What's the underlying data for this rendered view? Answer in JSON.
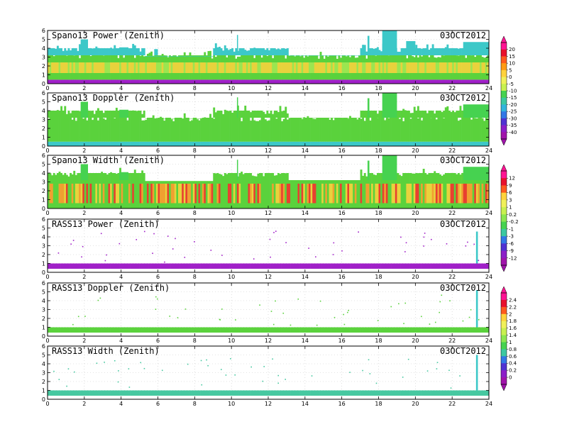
{
  "chart_data": [
    {
      "type": "heatmap",
      "title": "Spano13 Power (Zenith)",
      "date": "03OCT2012",
      "x_ticks": [
        0,
        2,
        4,
        6,
        8,
        10,
        12,
        14,
        16,
        18,
        20,
        22,
        24
      ],
      "y_ticks": [
        0,
        1,
        2,
        3,
        4,
        5,
        6
      ],
      "xlim": [
        0,
        24
      ],
      "ylim": [
        0,
        6
      ],
      "colorbar_group": 0,
      "layers": [
        {
          "from": 0.0,
          "to": 0.45,
          "level": "purple"
        },
        {
          "from": 0.45,
          "to": 1.2,
          "level": "green"
        },
        {
          "from": 1.2,
          "to": 2.4,
          "level": "yellow"
        },
        {
          "from": 2.4,
          "to": 3.2,
          "level": "green"
        },
        {
          "from": 3.2,
          "to": 4.0,
          "level": "cyan"
        }
      ],
      "plumes": [
        {
          "x": [
            1.8,
            2.2
          ],
          "top": 5.0
        },
        {
          "x": [
            3.9,
            4.4
          ],
          "top": 4.1
        },
        {
          "x": [
            5.8,
            6.0
          ],
          "top": 3.9
        },
        {
          "x": [
            9.2,
            9.3
          ],
          "top": 4.1
        },
        {
          "x": [
            10.3,
            10.35
          ],
          "top": 5.5
        },
        {
          "x": [
            17.4,
            17.5
          ],
          "top": 5.4
        },
        {
          "x": [
            18.2,
            19.0
          ],
          "top": 6.0
        },
        {
          "x": [
            19.5,
            20.0
          ],
          "top": 4.8
        },
        {
          "x": [
            22.6,
            24.0
          ],
          "top": 4.7
        }
      ]
    },
    {
      "type": "heatmap",
      "title": "Spano13 Doppler (Zenith)",
      "date": "03OCT2012",
      "x_ticks": [
        0,
        2,
        4,
        6,
        8,
        10,
        12,
        14,
        16,
        18,
        20,
        22,
        24
      ],
      "y_ticks": [
        0,
        1,
        2,
        3,
        4,
        5,
        6
      ],
      "xlim": [
        0,
        24
      ],
      "ylim": [
        0,
        6
      ],
      "colorbar_group": 0,
      "layers": [
        {
          "from": 0.0,
          "to": 0.5,
          "level": "cyan"
        },
        {
          "from": 0.5,
          "to": 3.2,
          "level": "green"
        },
        {
          "from": 3.2,
          "to": 4.0,
          "level": "green"
        }
      ],
      "plumes": [
        {
          "x": [
            1.8,
            2.2
          ],
          "top": 5.0
        },
        {
          "x": [
            3.9,
            4.4
          ],
          "top": 4.1
        },
        {
          "x": [
            10.3,
            10.35
          ],
          "top": 5.5
        },
        {
          "x": [
            17.4,
            17.5
          ],
          "top": 5.4
        },
        {
          "x": [
            18.2,
            19.0
          ],
          "top": 6.0
        },
        {
          "x": [
            22.6,
            24.0
          ],
          "top": 4.7
        }
      ]
    },
    {
      "type": "heatmap",
      "title": "Spano13 Width (Zenith)",
      "date": "03OCT2012",
      "x_ticks": [
        0,
        2,
        4,
        6,
        8,
        10,
        12,
        14,
        16,
        18,
        20,
        22,
        24
      ],
      "y_ticks": [
        0,
        1,
        2,
        3,
        4,
        5,
        6
      ],
      "xlim": [
        0,
        24
      ],
      "ylim": [
        0,
        6
      ],
      "colorbar_group": 1,
      "layers": [
        {
          "from": 0.0,
          "to": 0.6,
          "level": "green"
        },
        {
          "from": 0.6,
          "to": 2.8,
          "level": "mixed-red"
        },
        {
          "from": 2.8,
          "to": 4.0,
          "level": "green"
        }
      ],
      "plumes": [
        {
          "x": [
            1.8,
            2.2
          ],
          "top": 5.0
        },
        {
          "x": [
            3.9,
            4.4
          ],
          "top": 4.1
        },
        {
          "x": [
            10.3,
            10.35
          ],
          "top": 5.5
        },
        {
          "x": [
            17.4,
            17.5
          ],
          "top": 5.4
        },
        {
          "x": [
            18.2,
            19.0
          ],
          "top": 6.0
        },
        {
          "x": [
            22.6,
            24.0
          ],
          "top": 4.7
        }
      ]
    },
    {
      "type": "heatmap",
      "title": "RASS13 Power (Zenith)",
      "date": "03OCT2012",
      "x_ticks": [
        0,
        2,
        4,
        6,
        8,
        10,
        12,
        14,
        16,
        18,
        20,
        22,
        24
      ],
      "y_ticks": [
        0,
        1,
        2,
        3,
        4,
        5,
        6
      ],
      "xlim": [
        0,
        24
      ],
      "ylim": [
        0,
        6
      ],
      "colorbar_group": 1,
      "layers": [
        {
          "from": 0.4,
          "to": 1.0,
          "level": "purple"
        }
      ],
      "plumes": [
        {
          "x": [
            23.3,
            23.4
          ],
          "top": 4.6
        }
      ]
    },
    {
      "type": "heatmap",
      "title": "RASS13 Doppler (Zenith)",
      "date": "03OCT2012",
      "x_ticks": [
        0,
        2,
        4,
        6,
        8,
        10,
        12,
        14,
        16,
        18,
        20,
        22,
        24
      ],
      "y_ticks": [
        0,
        1,
        2,
        3,
        4,
        5,
        6
      ],
      "xlim": [
        0,
        24
      ],
      "ylim": [
        0,
        6
      ],
      "colorbar_group": 2,
      "layers": [
        {
          "from": 0.4,
          "to": 1.0,
          "level": "green"
        }
      ],
      "plumes": [
        {
          "x": [
            23.3,
            23.4
          ],
          "top": 5.2
        }
      ]
    },
    {
      "type": "heatmap",
      "title": "RASS13 Width (Zenith)",
      "date": "03OCT2012",
      "x_ticks": [
        0,
        2,
        4,
        6,
        8,
        10,
        12,
        14,
        16,
        18,
        20,
        22,
        24
      ],
      "y_ticks": [
        0,
        1,
        2,
        3,
        4,
        5,
        6
      ],
      "xlim": [
        0,
        24
      ],
      "ylim": [
        0,
        6
      ],
      "colorbar_group": 2,
      "layers": [
        {
          "from": 0.4,
          "to": 1.0,
          "level": "cyan-green"
        }
      ],
      "plumes": [
        {
          "x": [
            23.3,
            23.4
          ],
          "top": 5.0
        }
      ]
    }
  ],
  "colorbars": [
    {
      "labels": [
        "20",
        "15",
        "10",
        "5",
        "0",
        "-5",
        "-10",
        "-15",
        "-20",
        "-25",
        "-30",
        "-35",
        "-40"
      ]
    },
    {
      "labels": [
        "12",
        "9",
        "6",
        "3",
        "1",
        "0.2",
        "-0.2",
        "-1",
        "-3",
        "-6",
        "-9",
        "-12"
      ]
    },
    {
      "labels": [
        "2.4",
        "2.2",
        "2",
        "1.8",
        "1.6",
        "1.4",
        "1",
        "0.8",
        "0.6",
        "0.4",
        "0.2",
        "0"
      ]
    }
  ],
  "colorbar_colors": [
    "#ff1493",
    "#e8102c",
    "#ff5a1e",
    "#ff9a14",
    "#ffd23c",
    "#f0f05a",
    "#c8f050",
    "#8ce650",
    "#46d250",
    "#3cc8a0",
    "#32b4dc",
    "#3278e6",
    "#5032d2",
    "#8c1ec8",
    "#a014aa"
  ],
  "palette": {
    "purple": "#a020c8",
    "green": "#5ad23c",
    "yellow": "#e8d23c",
    "cyan": "#3cc8c8",
    "mixed-red": "#e84030",
    "cyan-green": "#46c8a0"
  }
}
